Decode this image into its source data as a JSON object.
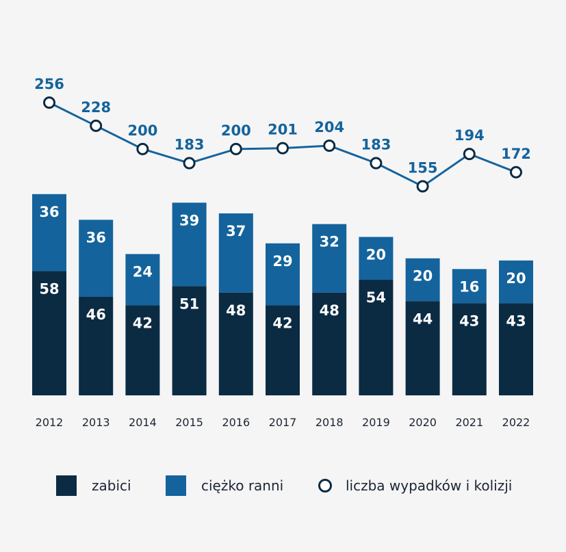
{
  "chart_data": {
    "type": "bar",
    "stacked": true,
    "categories": [
      "2012",
      "2013",
      "2014",
      "2015",
      "2016",
      "2017",
      "2018",
      "2019",
      "2020",
      "2021",
      "2022"
    ],
    "series": [
      {
        "name": "zabici",
        "kind": "bar",
        "color": "#0b2b43",
        "values": [
          58,
          46,
          42,
          51,
          48,
          42,
          48,
          54,
          44,
          43,
          43
        ]
      },
      {
        "name": "ciężko ranni",
        "kind": "bar",
        "color": "#14639c",
        "values": [
          36,
          36,
          24,
          39,
          37,
          29,
          32,
          20,
          20,
          16,
          20
        ]
      },
      {
        "name": "liczba wypadków i kolizji",
        "kind": "line",
        "color": "#14639c",
        "values": [
          256,
          228,
          200,
          183,
          200,
          201,
          204,
          183,
          155,
          194,
          172
        ]
      }
    ],
    "legend_position": "bottom",
    "grid": false
  },
  "legend": {
    "killed": "zabici",
    "injured": "ciężko ranni",
    "accidents": "liczba wypadków i kolizji"
  }
}
